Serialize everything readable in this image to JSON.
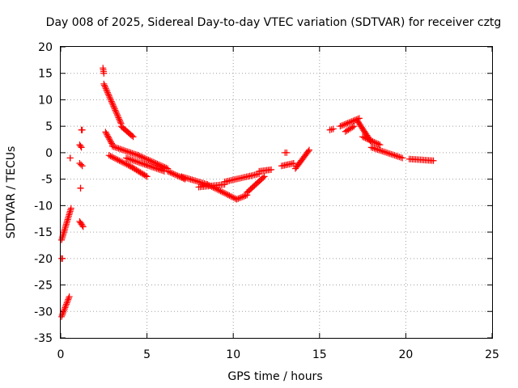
{
  "chart_data": {
    "type": "scatter",
    "title": "Day 008 of 2025, Sidereal Day-to-day VTEC variation (SDTVAR) for receiver cztg",
    "xlabel": "GPS time / hours",
    "ylabel": "SDTVAR / TECUs",
    "xlim": [
      0,
      25
    ],
    "ylim": [
      -35,
      20
    ],
    "x_ticks": [
      0,
      5,
      10,
      15,
      20,
      25
    ],
    "x_tick_labels": [
      "0",
      "5",
      "10",
      "15",
      "20",
      "25"
    ],
    "y_ticks": [
      20,
      15,
      10,
      5,
      0,
      -5,
      -10,
      -15,
      -20,
      -25,
      -30,
      -35
    ],
    "y_tick_labels": [
      "20",
      "15",
      "10",
      "5",
      "0",
      "-5",
      "-10",
      "-15",
      "-20",
      "-25",
      "-30",
      "-35"
    ],
    "grid": true,
    "marker": "+",
    "marker_color": "#ff0000",
    "series": [
      {
        "name": "SDTVAR",
        "segments": [
          {
            "x": [
              0.05,
              0.5
            ],
            "y": [
              -31,
              -27.2
            ]
          },
          {
            "x": [
              0.05,
              0.6
            ],
            "y": [
              -16.5,
              -10.5
            ]
          },
          {
            "x": [
              0.05,
              0.1
            ],
            "y": [
              -20,
              -20
            ]
          },
          {
            "x": [
              0.55,
              0.55
            ],
            "y": [
              -1,
              -1
            ]
          },
          {
            "x": [
              1.1,
              1.25
            ],
            "y": [
              -2,
              -2.5
            ]
          },
          {
            "x": [
              1.1,
              1.2
            ],
            "y": [
              1.5,
              1
            ]
          },
          {
            "x": [
              1.2,
              1.25
            ],
            "y": [
              4.3,
              4.3
            ]
          },
          {
            "x": [
              1.15,
              1.15
            ],
            "y": [
              -6.7,
              -6.7
            ]
          },
          {
            "x": [
              1.1,
              1.3
            ],
            "y": [
              -13,
              -14
            ]
          },
          {
            "x": [
              2.45,
              2.5
            ],
            "y": [
              16,
              15
            ]
          },
          {
            "x": [
              2.5,
              3.5
            ],
            "y": [
              13,
              5.5
            ]
          },
          {
            "x": [
              3.5,
              4.2
            ],
            "y": [
              5,
              3
            ]
          },
          {
            "x": [
              2.6,
              3.0
            ],
            "y": [
              3.9,
              1.5
            ]
          },
          {
            "x": [
              3.0,
              4.5
            ],
            "y": [
              1.2,
              -0.5
            ]
          },
          {
            "x": [
              4.5,
              6.2
            ],
            "y": [
              -0.5,
              -3
            ]
          },
          {
            "x": [
              2.8,
              4.0
            ],
            "y": [
              -0.5,
              -2.5
            ]
          },
          {
            "x": [
              4.0,
              5.0
            ],
            "y": [
              -2.5,
              -4.5
            ]
          },
          {
            "x": [
              3.8,
              6.0
            ],
            "y": [
              -1,
              -3.5
            ]
          },
          {
            "x": [
              6.2,
              7.2
            ],
            "y": [
              -3.5,
              -5
            ]
          },
          {
            "x": [
              7.0,
              8.5
            ],
            "y": [
              -4.5,
              -6
            ]
          },
          {
            "x": [
              8.5,
              10.2
            ],
            "y": [
              -6,
              -8.8
            ]
          },
          {
            "x": [
              10.2,
              10.8
            ],
            "y": [
              -8.8,
              -8
            ]
          },
          {
            "x": [
              10.8,
              11.8
            ],
            "y": [
              -7.5,
              -4.5
            ]
          },
          {
            "x": [
              8.0,
              9.5
            ],
            "y": [
              -6.5,
              -6
            ]
          },
          {
            "x": [
              9.5,
              11.5
            ],
            "y": [
              -5.5,
              -4
            ]
          },
          {
            "x": [
              11.5,
              12.2
            ],
            "y": [
              -3.5,
              -3.2
            ]
          },
          {
            "x": [
              12.8,
              13.5
            ],
            "y": [
              -2.5,
              -2
            ]
          },
          {
            "x": [
              13.0,
              13.1
            ],
            "y": [
              0,
              0
            ]
          },
          {
            "x": [
              13.6,
              14.4
            ],
            "y": [
              -3,
              0.5
            ]
          },
          {
            "x": [
              15.6,
              15.8
            ],
            "y": [
              4.3,
              4.5
            ]
          },
          {
            "x": [
              16.2,
              17.3
            ],
            "y": [
              5,
              6.5
            ]
          },
          {
            "x": [
              16.5,
              17.0
            ],
            "y": [
              4,
              5
            ]
          },
          {
            "x": [
              17.2,
              18.0
            ],
            "y": [
              6,
              2
            ]
          },
          {
            "x": [
              17.5,
              18.5
            ],
            "y": [
              3,
              1.5
            ]
          },
          {
            "x": [
              18.0,
              19.8
            ],
            "y": [
              1,
              -1
            ]
          },
          {
            "x": [
              20.2,
              21.6
            ],
            "y": [
              -1.2,
              -1.5
            ]
          }
        ]
      }
    ]
  }
}
